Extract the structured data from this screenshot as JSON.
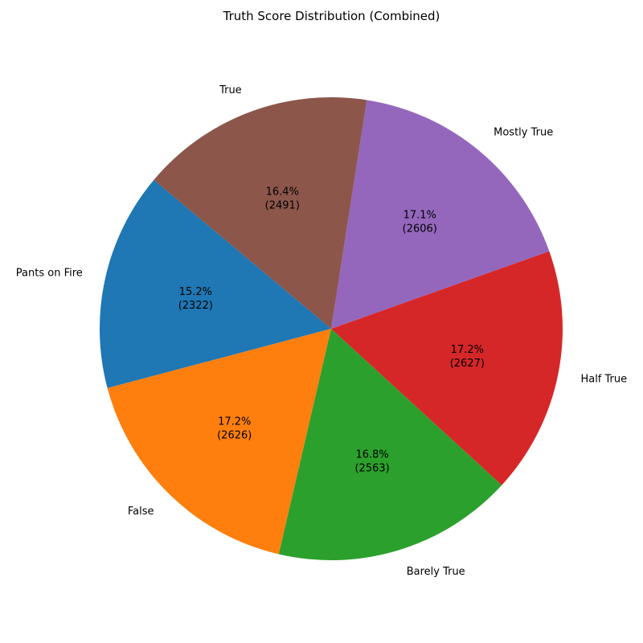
{
  "chart_data": {
    "type": "pie",
    "title": "Truth Score Distribution (Combined)",
    "categories": [
      "Pants on Fire",
      "False",
      "Barely True",
      "Half True",
      "Mostly True",
      "True"
    ],
    "values": [
      2322,
      2626,
      2563,
      2627,
      2606,
      2491
    ],
    "percent_labels": [
      "15.2%",
      "17.2%",
      "16.8%",
      "17.2%",
      "17.1%",
      "16.4%"
    ],
    "count_labels": [
      "(2322)",
      "(2626)",
      "(2563)",
      "(2627)",
      "(2606)",
      "(2491)"
    ],
    "colors": [
      "#1f77b4",
      "#ff7f0e",
      "#2ca02c",
      "#d62728",
      "#9467bd",
      "#8c564b"
    ],
    "start_angle_deg": 140,
    "direction": "counterclockwise",
    "legend": "none"
  }
}
